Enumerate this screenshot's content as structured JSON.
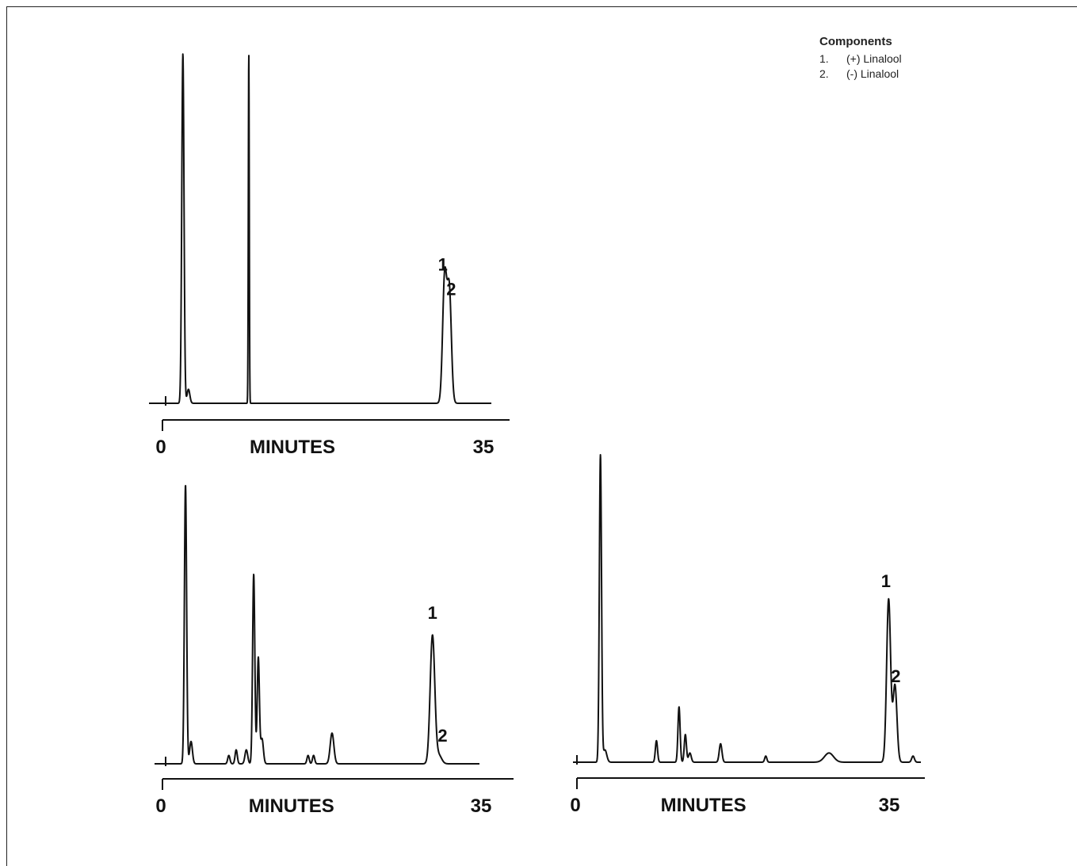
{
  "legend": {
    "title": "Components",
    "items": [
      {
        "num": "1.",
        "label": "(+) Linalool"
      },
      {
        "num": "2.",
        "label": "(-) Linalool"
      }
    ]
  },
  "chart_data": [
    {
      "type": "line",
      "xlabel": "MINUTES",
      "xlim": [
        0,
        35
      ],
      "ticks": [
        "0",
        "35"
      ],
      "peak_labels": [
        {
          "text": "1",
          "x": 30.2,
          "y": 0.38
        },
        {
          "text": "2",
          "x": 31.1,
          "y": 0.31
        }
      ],
      "peaks": [
        {
          "x": 2.2,
          "h": 1.0,
          "w": 0.12
        },
        {
          "x": 2.8,
          "h": 0.04,
          "w": 0.15
        },
        {
          "x": 9.3,
          "h": 1.0,
          "w": 0.05
        },
        {
          "x": 30.4,
          "h": 0.36,
          "w": 0.22
        },
        {
          "x": 30.9,
          "h": 0.32,
          "w": 0.22
        }
      ]
    },
    {
      "type": "line",
      "xlabel": "MINUTES",
      "xlim": [
        0,
        35
      ],
      "ticks": [
        "0",
        "35"
      ],
      "peak_labels": [
        {
          "text": "1",
          "x": 29.3,
          "y": 0.52
        },
        {
          "text": "2",
          "x": 30.4,
          "y": 0.08
        }
      ],
      "peaks": [
        {
          "x": 2.5,
          "h": 1.0,
          "w": 0.12
        },
        {
          "x": 3.1,
          "h": 0.08,
          "w": 0.15
        },
        {
          "x": 7.2,
          "h": 0.03,
          "w": 0.12
        },
        {
          "x": 8.0,
          "h": 0.05,
          "w": 0.12
        },
        {
          "x": 9.1,
          "h": 0.05,
          "w": 0.15
        },
        {
          "x": 9.9,
          "h": 0.68,
          "w": 0.12
        },
        {
          "x": 10.4,
          "h": 0.38,
          "w": 0.12
        },
        {
          "x": 10.8,
          "h": 0.09,
          "w": 0.15
        },
        {
          "x": 15.8,
          "h": 0.03,
          "w": 0.12
        },
        {
          "x": 16.4,
          "h": 0.03,
          "w": 0.12
        },
        {
          "x": 18.4,
          "h": 0.11,
          "w": 0.2
        },
        {
          "x": 29.3,
          "h": 0.46,
          "w": 0.25
        },
        {
          "x": 30.0,
          "h": 0.03,
          "w": 0.3
        }
      ]
    },
    {
      "type": "line",
      "xlabel": "MINUTES",
      "xlim": [
        0,
        35
      ],
      "ticks": [
        "0",
        "35"
      ],
      "peak_labels": [
        {
          "text": "1",
          "x": 34.2,
          "y": 0.57
        },
        {
          "text": "2",
          "x": 35.3,
          "y": 0.26
        }
      ],
      "peaks": [
        {
          "x": 2.6,
          "h": 1.0,
          "w": 0.12
        },
        {
          "x": 3.1,
          "h": 0.04,
          "w": 0.2
        },
        {
          "x": 8.8,
          "h": 0.07,
          "w": 0.12
        },
        {
          "x": 11.3,
          "h": 0.18,
          "w": 0.12
        },
        {
          "x": 12.0,
          "h": 0.09,
          "w": 0.12
        },
        {
          "x": 12.5,
          "h": 0.03,
          "w": 0.15
        },
        {
          "x": 15.9,
          "h": 0.06,
          "w": 0.15
        },
        {
          "x": 20.9,
          "h": 0.02,
          "w": 0.12
        },
        {
          "x": 27.9,
          "h": 0.03,
          "w": 0.5
        },
        {
          "x": 34.5,
          "h": 0.53,
          "w": 0.22
        },
        {
          "x": 35.2,
          "h": 0.25,
          "w": 0.22
        },
        {
          "x": 37.2,
          "h": 0.02,
          "w": 0.15
        }
      ]
    }
  ]
}
